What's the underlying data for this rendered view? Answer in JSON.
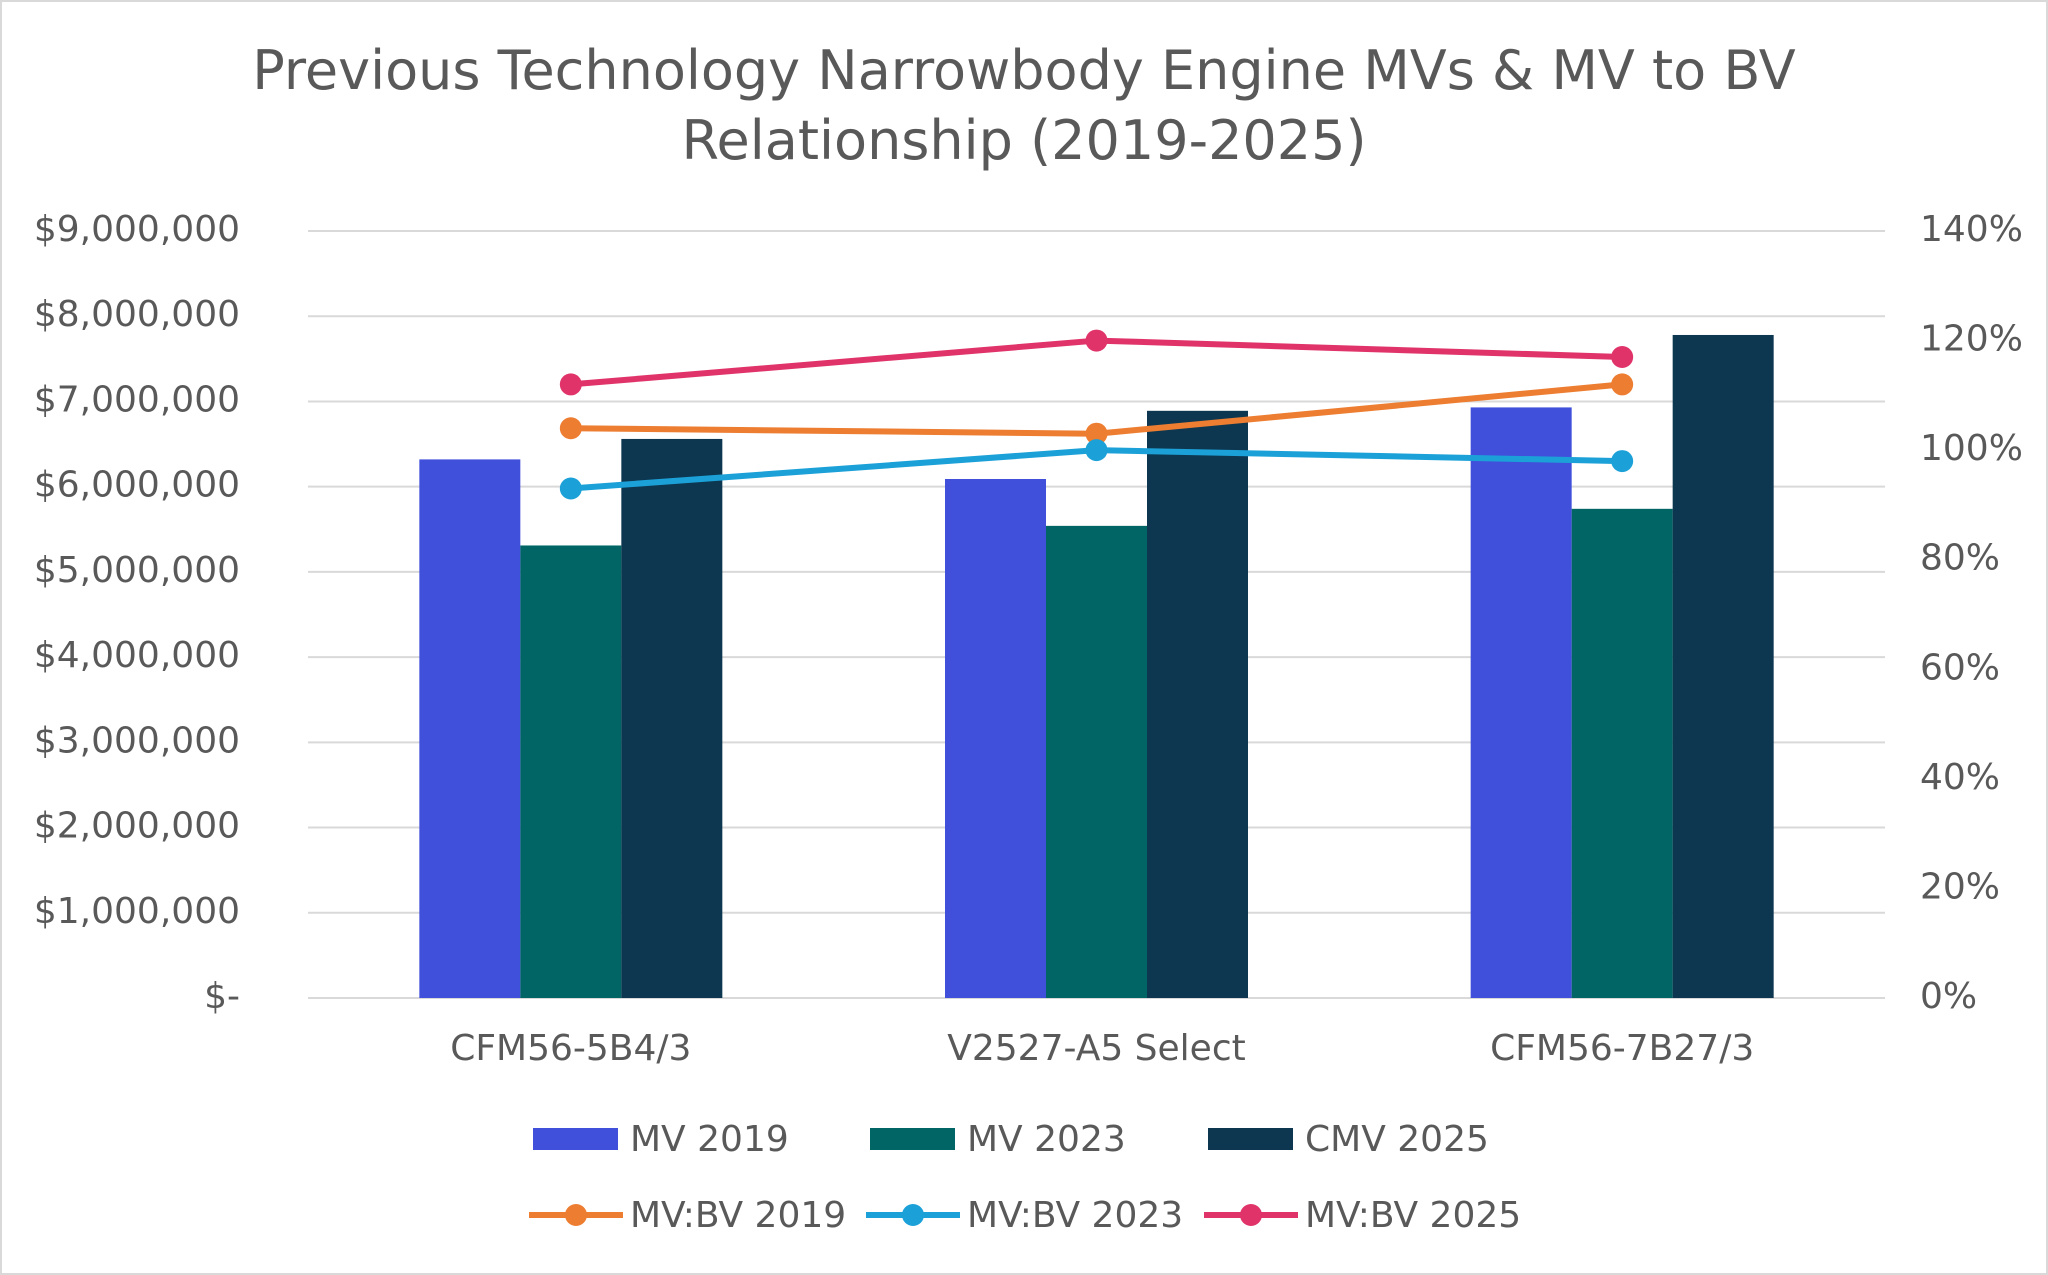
{
  "chart_data": {
    "type": "bar",
    "title": "Previous Technology Narrowbody Engine MVs & MV to BV Relationship (2019-2025)",
    "categories": [
      "CFM56-5B4/3",
      "V2527-A5 Select",
      "CFM56-7B27/3"
    ],
    "series": [
      {
        "name": "MV 2019",
        "type": "bar",
        "color": "#4150db",
        "values": [
          6320000,
          6090000,
          6930000
        ]
      },
      {
        "name": "MV 2023",
        "type": "bar",
        "color": "#026565",
        "values": [
          5310000,
          5540000,
          5740000
        ]
      },
      {
        "name": "CMV 2025",
        "type": "bar",
        "color": "#0d3750",
        "values": [
          6560000,
          6890000,
          7780000
        ]
      },
      {
        "name": "MV:BV 2019",
        "type": "line",
        "axis": "y2",
        "color": "#ed7d31",
        "values": [
          104,
          103,
          112
        ]
      },
      {
        "name": "MV:BV 2023",
        "type": "line",
        "axis": "y2",
        "color": "#1ba1d8",
        "values": [
          93,
          100,
          98
        ]
      },
      {
        "name": "MV:BV 2025",
        "type": "line",
        "axis": "y2",
        "color": "#e0336a",
        "values": [
          112,
          120,
          117
        ]
      }
    ],
    "ylim": [
      0,
      9000000
    ],
    "yticks": [
      {
        "value": 0,
        "label": "$-"
      },
      {
        "value": 1000000,
        "label": "$1,000,000"
      },
      {
        "value": 2000000,
        "label": "$2,000,000"
      },
      {
        "value": 3000000,
        "label": "$3,000,000"
      },
      {
        "value": 4000000,
        "label": "$4,000,000"
      },
      {
        "value": 5000000,
        "label": "$5,000,000"
      },
      {
        "value": 6000000,
        "label": "$6,000,000"
      },
      {
        "value": 7000000,
        "label": "$7,000,000"
      },
      {
        "value": 8000000,
        "label": "$8,000,000"
      },
      {
        "value": 9000000,
        "label": "$9,000,000"
      }
    ],
    "y2lim": [
      0,
      140
    ],
    "y2ticks": [
      {
        "value": 0,
        "label": "0%"
      },
      {
        "value": 20,
        "label": "20%"
      },
      {
        "value": 40,
        "label": "40%"
      },
      {
        "value": 60,
        "label": "60%"
      },
      {
        "value": 80,
        "label": "80%"
      },
      {
        "value": 100,
        "label": "100%"
      },
      {
        "value": 120,
        "label": "120%"
      },
      {
        "value": 140,
        "label": "140%"
      }
    ],
    "grid": true,
    "legend": "bottom"
  }
}
